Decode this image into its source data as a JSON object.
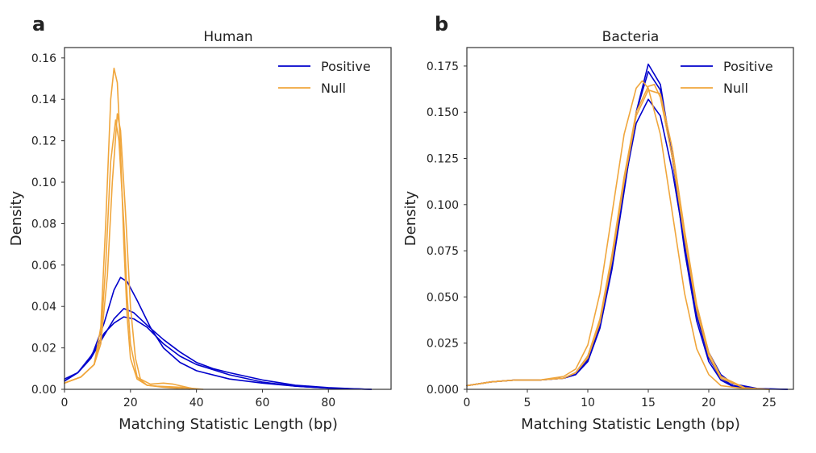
{
  "chart_data": [
    {
      "type": "line",
      "panel_label": "a",
      "title": "Human",
      "xlabel": "Matching Statistic Length (bp)",
      "ylabel": "Density",
      "xlim": [
        0,
        99
      ],
      "ylim": [
        0,
        0.165
      ],
      "xticks": [
        0,
        20,
        40,
        60,
        80
      ],
      "xtick_labels": [
        "0",
        "20",
        "40",
        "60",
        "80"
      ],
      "yticks": [
        0,
        0.02,
        0.04,
        0.06,
        0.08,
        0.1,
        0.12,
        0.14,
        0.16
      ],
      "ytick_labels": [
        "0.00",
        "0.02",
        "0.04",
        "0.06",
        "0.08",
        "0.10",
        "0.12",
        "0.14",
        "0.16"
      ],
      "grid": false,
      "legend_position": "top-right",
      "legend": [
        {
          "label": "Positive",
          "color": "#0000cc"
        },
        {
          "label": "Null",
          "color": "#f0a63c"
        }
      ],
      "series": [
        {
          "group": "Positive",
          "color": "#0000cc",
          "points": [
            [
              0,
              0.005
            ],
            [
              4,
              0.008
            ],
            [
              8,
              0.015
            ],
            [
              12,
              0.032
            ],
            [
              15,
              0.048
            ],
            [
              17,
              0.054
            ],
            [
              19,
              0.052
            ],
            [
              22,
              0.043
            ],
            [
              26,
              0.03
            ],
            [
              30,
              0.02
            ],
            [
              35,
              0.013
            ],
            [
              40,
              0.009
            ],
            [
              50,
              0.005
            ],
            [
              60,
              0.003
            ],
            [
              70,
              0.0015
            ],
            [
              80,
              0.0006
            ],
            [
              90,
              0.0001
            ],
            [
              93,
              0
            ]
          ]
        },
        {
          "group": "Positive",
          "color": "#0000cc",
          "points": [
            [
              0,
              0.004
            ],
            [
              4,
              0.008
            ],
            [
              8,
              0.015
            ],
            [
              12,
              0.026
            ],
            [
              15,
              0.034
            ],
            [
              18,
              0.039
            ],
            [
              21,
              0.037
            ],
            [
              25,
              0.031
            ],
            [
              30,
              0.024
            ],
            [
              35,
              0.018
            ],
            [
              40,
              0.013
            ],
            [
              45,
              0.01
            ],
            [
              50,
              0.008
            ],
            [
              60,
              0.0045
            ],
            [
              70,
              0.002
            ],
            [
              80,
              0.0008
            ],
            [
              90,
              0.0001
            ],
            [
              93,
              0
            ]
          ]
        },
        {
          "group": "Positive",
          "color": "#0000cc",
          "points": [
            [
              0,
              0.004
            ],
            [
              4,
              0.008
            ],
            [
              8,
              0.016
            ],
            [
              12,
              0.027
            ],
            [
              15,
              0.032
            ],
            [
              18,
              0.035
            ],
            [
              21,
              0.034
            ],
            [
              25,
              0.03
            ],
            [
              30,
              0.022
            ],
            [
              35,
              0.016
            ],
            [
              40,
              0.012
            ],
            [
              50,
              0.007
            ],
            [
              60,
              0.0035
            ],
            [
              70,
              0.0015
            ],
            [
              80,
              0.0006
            ],
            [
              90,
              0.0001
            ],
            [
              93,
              0
            ]
          ]
        },
        {
          "group": "Null",
          "color": "#f0a63c",
          "points": [
            [
              0,
              0.003
            ],
            [
              5,
              0.006
            ],
            [
              9,
              0.012
            ],
            [
              11,
              0.03
            ],
            [
              12.5,
              0.08
            ],
            [
              14,
              0.14
            ],
            [
              15,
              0.155
            ],
            [
              16,
              0.148
            ],
            [
              17,
              0.115
            ],
            [
              18,
              0.07
            ],
            [
              19,
              0.035
            ],
            [
              20,
              0.015
            ],
            [
              22,
              0.005
            ],
            [
              25,
              0.002
            ],
            [
              28,
              0.0015
            ],
            [
              35,
              0.001
            ],
            [
              42,
              0
            ]
          ]
        },
        {
          "group": "Null",
          "color": "#f0a63c",
          "points": [
            [
              0,
              0.003
            ],
            [
              5,
              0.006
            ],
            [
              9,
              0.012
            ],
            [
              11,
              0.025
            ],
            [
              12.5,
              0.06
            ],
            [
              14,
              0.11
            ],
            [
              15.5,
              0.13
            ],
            [
              16.5,
              0.12
            ],
            [
              18,
              0.08
            ],
            [
              19,
              0.045
            ],
            [
              20,
              0.022
            ],
            [
              22,
              0.006
            ],
            [
              25,
              0.002
            ],
            [
              30,
              0.001
            ],
            [
              38,
              0
            ]
          ]
        },
        {
          "group": "Null",
          "color": "#f0a63c",
          "points": [
            [
              0,
              0.003
            ],
            [
              5,
              0.006
            ],
            [
              9,
              0.012
            ],
            [
              11,
              0.022
            ],
            [
              13,
              0.055
            ],
            [
              14.5,
              0.1
            ],
            [
              16,
              0.133
            ],
            [
              17,
              0.125
            ],
            [
              18.5,
              0.085
            ],
            [
              20,
              0.04
            ],
            [
              21.5,
              0.015
            ],
            [
              23,
              0.005
            ],
            [
              26,
              0.0025
            ],
            [
              30,
              0.003
            ],
            [
              33,
              0.0025
            ],
            [
              37,
              0.001
            ],
            [
              40,
              0
            ]
          ]
        }
      ]
    },
    {
      "type": "line",
      "panel_label": "b",
      "title": "Bacteria",
      "xlabel": "Matching Statistic Length (bp)",
      "ylabel": "Density",
      "xlim": [
        0,
        27
      ],
      "ylim": [
        0,
        0.185
      ],
      "xticks": [
        0,
        5,
        10,
        15,
        20,
        25
      ],
      "xtick_labels": [
        "0",
        "5",
        "10",
        "15",
        "20",
        "25"
      ],
      "yticks": [
        0,
        0.025,
        0.05,
        0.075,
        0.1,
        0.125,
        0.15,
        0.175
      ],
      "ytick_labels": [
        "0.000",
        "0.025",
        "0.050",
        "0.075",
        "0.100",
        "0.125",
        "0.150",
        "0.175"
      ],
      "grid": false,
      "legend_position": "top-right",
      "legend": [
        {
          "label": "Positive",
          "color": "#0000cc"
        },
        {
          "label": "Null",
          "color": "#f0a63c"
        }
      ],
      "series": [
        {
          "group": "Positive",
          "color": "#0000cc",
          "points": [
            [
              0,
              0.002
            ],
            [
              2,
              0.004
            ],
            [
              4,
              0.005
            ],
            [
              6,
              0.005
            ],
            [
              8,
              0.006
            ],
            [
              9,
              0.008
            ],
            [
              10,
              0.015
            ],
            [
              11,
              0.033
            ],
            [
              12,
              0.065
            ],
            [
              13,
              0.107
            ],
            [
              14,
              0.15
            ],
            [
              15,
              0.176
            ],
            [
              16,
              0.165
            ],
            [
              17,
              0.125
            ],
            [
              18,
              0.075
            ],
            [
              19,
              0.037
            ],
            [
              20,
              0.015
            ],
            [
              21,
              0.005
            ],
            [
              22,
              0.0015
            ],
            [
              24,
              0.0002
            ],
            [
              26.5,
              0
            ]
          ]
        },
        {
          "group": "Positive",
          "color": "#0000cc",
          "points": [
            [
              0,
              0.002
            ],
            [
              2,
              0.004
            ],
            [
              4,
              0.005
            ],
            [
              6,
              0.005
            ],
            [
              8,
              0.006
            ],
            [
              9,
              0.008
            ],
            [
              10,
              0.016
            ],
            [
              11,
              0.034
            ],
            [
              12,
              0.067
            ],
            [
              13,
              0.109
            ],
            [
              14,
              0.15
            ],
            [
              15,
              0.172
            ],
            [
              16,
              0.162
            ],
            [
              17,
              0.125
            ],
            [
              18,
              0.078
            ],
            [
              19,
              0.04
            ],
            [
              20,
              0.017
            ],
            [
              21,
              0.006
            ],
            [
              22,
              0.002
            ],
            [
              24,
              0.0003
            ],
            [
              26.5,
              0
            ]
          ]
        },
        {
          "group": "Positive",
          "color": "#0000cc",
          "points": [
            [
              0,
              0.002
            ],
            [
              2,
              0.004
            ],
            [
              4,
              0.005
            ],
            [
              6,
              0.005
            ],
            [
              8,
              0.006
            ],
            [
              9,
              0.009
            ],
            [
              10,
              0.018
            ],
            [
              11,
              0.037
            ],
            [
              12,
              0.07
            ],
            [
              13,
              0.11
            ],
            [
              14,
              0.144
            ],
            [
              15,
              0.157
            ],
            [
              16,
              0.148
            ],
            [
              17,
              0.118
            ],
            [
              18,
              0.079
            ],
            [
              19,
              0.044
            ],
            [
              20,
              0.02
            ],
            [
              21,
              0.008
            ],
            [
              22,
              0.003
            ],
            [
              24,
              0.0005
            ],
            [
              26.5,
              0
            ]
          ]
        },
        {
          "group": "Null",
          "color": "#f0a63c",
          "points": [
            [
              0,
              0.002
            ],
            [
              2,
              0.004
            ],
            [
              4,
              0.005
            ],
            [
              6,
              0.005
            ],
            [
              8,
              0.007
            ],
            [
              9,
              0.011
            ],
            [
              10,
              0.024
            ],
            [
              11,
              0.052
            ],
            [
              12,
              0.095
            ],
            [
              13,
              0.138
            ],
            [
              14,
              0.163
            ],
            [
              14.5,
              0.167
            ],
            [
              15,
              0.163
            ],
            [
              16,
              0.138
            ],
            [
              17,
              0.095
            ],
            [
              18,
              0.052
            ],
            [
              19,
              0.022
            ],
            [
              20,
              0.008
            ],
            [
              21,
              0.002
            ],
            [
              23,
              0.0003
            ],
            [
              25,
              0
            ]
          ]
        },
        {
          "group": "Null",
          "color": "#f0a63c",
          "points": [
            [
              0,
              0.002
            ],
            [
              2,
              0.004
            ],
            [
              4,
              0.005
            ],
            [
              6,
              0.005
            ],
            [
              8,
              0.006
            ],
            [
              9,
              0.009
            ],
            [
              10,
              0.018
            ],
            [
              11,
              0.038
            ],
            [
              12,
              0.073
            ],
            [
              13,
              0.115
            ],
            [
              14,
              0.15
            ],
            [
              15,
              0.164
            ],
            [
              15.5,
              0.165
            ],
            [
              16,
              0.158
            ],
            [
              17,
              0.125
            ],
            [
              18,
              0.082
            ],
            [
              19,
              0.043
            ],
            [
              20,
              0.018
            ],
            [
              21,
              0.006
            ],
            [
              23,
              0.0006
            ],
            [
              25,
              0
            ]
          ]
        },
        {
          "group": "Null",
          "color": "#f0a63c",
          "points": [
            [
              0,
              0.002
            ],
            [
              2,
              0.004
            ],
            [
              4,
              0.005
            ],
            [
              6,
              0.005
            ],
            [
              8,
              0.006
            ],
            [
              9,
              0.009
            ],
            [
              10,
              0.017
            ],
            [
              11,
              0.036
            ],
            [
              12,
              0.07
            ],
            [
              13,
              0.112
            ],
            [
              14,
              0.148
            ],
            [
              15,
              0.162
            ],
            [
              16,
              0.16
            ],
            [
              17,
              0.13
            ],
            [
              18,
              0.086
            ],
            [
              19,
              0.046
            ],
            [
              20,
              0.02
            ],
            [
              21,
              0.007
            ],
            [
              23,
              0.0008
            ],
            [
              25,
              0
            ]
          ]
        }
      ]
    }
  ]
}
